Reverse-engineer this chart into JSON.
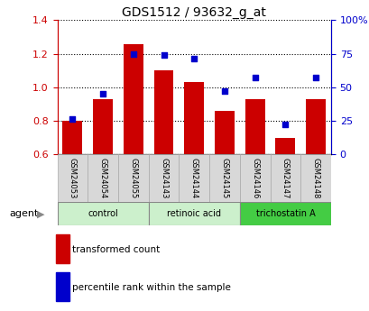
{
  "title": "GDS1512 / 93632_g_at",
  "categories": [
    "GSM24053",
    "GSM24054",
    "GSM24055",
    "GSM24143",
    "GSM24144",
    "GSM24145",
    "GSM24146",
    "GSM24147",
    "GSM24148"
  ],
  "bar_values": [
    0.8,
    0.93,
    1.255,
    1.1,
    1.03,
    0.86,
    0.93,
    0.695,
    0.93
  ],
  "scatter_values": [
    26,
    45,
    75,
    74,
    71,
    47,
    57,
    22,
    57
  ],
  "bar_color": "#cc0000",
  "scatter_color": "#0000cc",
  "ylim_left": [
    0.6,
    1.4
  ],
  "ylim_right": [
    0,
    100
  ],
  "yticks_left": [
    0.6,
    0.8,
    1.0,
    1.2,
    1.4
  ],
  "yticks_right": [
    0,
    25,
    50,
    75,
    100
  ],
  "yticklabels_right": [
    "0",
    "25",
    "50",
    "75",
    "100%"
  ],
  "group_labels": [
    "control",
    "retinoic acid",
    "trichostatin A"
  ],
  "group_starts": [
    0,
    3,
    6
  ],
  "group_ends": [
    2,
    5,
    8
  ],
  "group_colors": [
    "#ccf0cc",
    "#ccf0cc",
    "#44cc44"
  ],
  "legend_items": [
    {
      "label": "transformed count",
      "color": "#cc0000"
    },
    {
      "label": "percentile rank within the sample",
      "color": "#0000cc"
    }
  ],
  "bar_width": 0.65,
  "gsm_box_color": "#d8d8d8",
  "gsm_box_edge": "#aaaaaa"
}
